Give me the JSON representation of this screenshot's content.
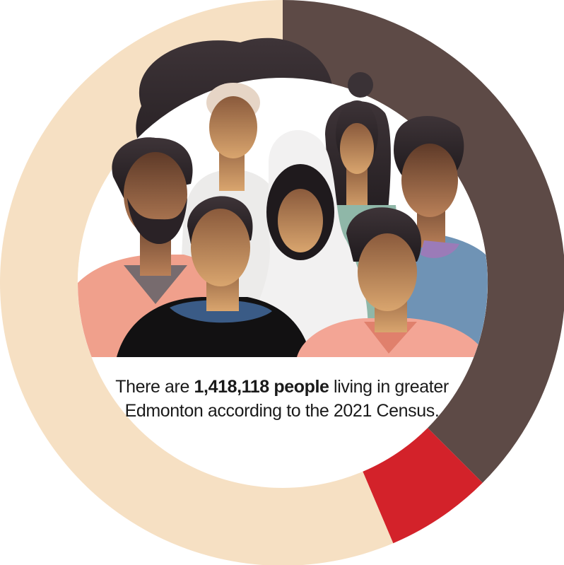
{
  "caption": {
    "before": "There are",
    "highlight": "1,418,118 people",
    "after": "living in greater Edmonton according to the 2021 Census."
  }
}
